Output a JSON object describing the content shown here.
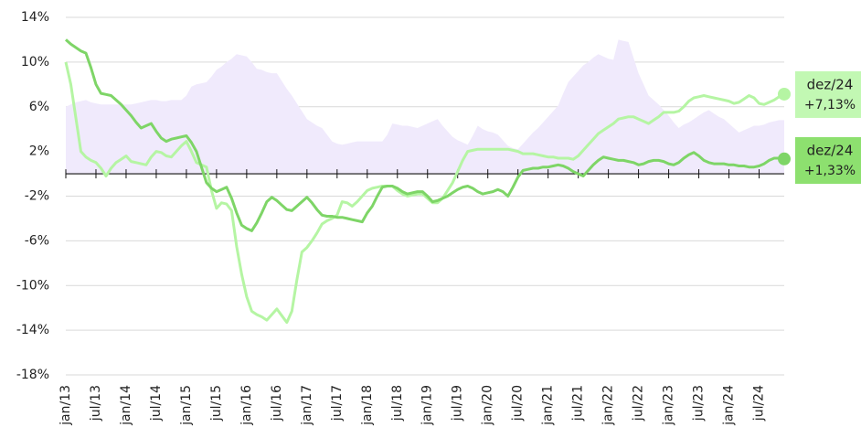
{
  "chart_data": {
    "type": "line",
    "categories": [
      "jan/13",
      null,
      null,
      null,
      null,
      null,
      "jul/13",
      null,
      null,
      null,
      null,
      null,
      "jan/14",
      null,
      null,
      null,
      null,
      null,
      "jul/14",
      null,
      null,
      null,
      null,
      null,
      "jan/15",
      null,
      null,
      null,
      null,
      null,
      "jul/15",
      null,
      null,
      null,
      null,
      null,
      "jan/16",
      null,
      null,
      null,
      null,
      null,
      "jul/16",
      null,
      null,
      null,
      null,
      null,
      "jan/17",
      null,
      null,
      null,
      null,
      null,
      "jul/17",
      null,
      null,
      null,
      null,
      null,
      "jan/18",
      null,
      null,
      null,
      null,
      null,
      "jul/18",
      null,
      null,
      null,
      null,
      null,
      "jan/19",
      null,
      null,
      null,
      null,
      null,
      "jul/19",
      null,
      null,
      null,
      null,
      null,
      "jan/20",
      null,
      null,
      null,
      null,
      null,
      "jul/20",
      null,
      null,
      null,
      null,
      null,
      "jan/21",
      null,
      null,
      null,
      null,
      null,
      "jul/21",
      null,
      null,
      null,
      null,
      null,
      "jan/22",
      null,
      null,
      null,
      null,
      null,
      "jul/22",
      null,
      null,
      null,
      null,
      null,
      "jan/23",
      null,
      null,
      null,
      null,
      null,
      "jul/23",
      null,
      null,
      null,
      null,
      null,
      "jan/24",
      null,
      null,
      null,
      null,
      null,
      "jul/24",
      null,
      null,
      null,
      null,
      null
    ],
    "last_period": "dez/24",
    "series": [
      {
        "kind": "area",
        "color": "#f0eafc",
        "values": [
          6.0,
          6.2,
          6.4,
          6.5,
          6.6,
          6.4,
          6.3,
          6.2,
          6.2,
          6.2,
          6.2,
          6.2,
          6.2,
          6.2,
          6.3,
          6.4,
          6.5,
          6.6,
          6.6,
          6.5,
          6.5,
          6.6,
          6.6,
          6.6,
          7.0,
          7.8,
          8.0,
          8.1,
          8.2,
          8.7,
          9.3,
          9.6,
          10.0,
          10.3,
          10.7,
          10.6,
          10.5,
          10.0,
          9.4,
          9.3,
          9.1,
          9.0,
          9.0,
          8.3,
          7.6,
          7.0,
          6.3,
          5.6,
          4.9,
          4.6,
          4.3,
          4.1,
          3.5,
          2.9,
          2.7,
          2.6,
          2.7,
          2.8,
          2.9,
          2.9,
          2.9,
          2.9,
          2.9,
          2.9,
          3.5,
          4.5,
          4.4,
          4.3,
          4.3,
          4.2,
          4.1,
          4.3,
          4.5,
          4.7,
          4.9,
          4.3,
          3.8,
          3.3,
          3.0,
          2.8,
          2.6,
          3.4,
          4.3,
          4.0,
          3.8,
          3.7,
          3.5,
          3.0,
          2.5,
          2.3,
          2.2,
          2.7,
          3.2,
          3.7,
          4.1,
          4.6,
          5.1,
          5.6,
          6.1,
          7.2,
          8.2,
          8.7,
          9.2,
          9.7,
          10.0,
          10.4,
          10.7,
          10.5,
          10.3,
          10.2,
          12.0,
          11.9,
          11.8,
          10.4,
          9.0,
          8.0,
          7.0,
          6.6,
          6.2,
          5.7,
          5.2,
          4.6,
          4.1,
          4.4,
          4.6,
          4.9,
          5.2,
          5.5,
          5.7,
          5.4,
          5.1,
          4.9,
          4.5,
          4.1,
          3.7,
          3.9,
          4.1,
          4.3,
          4.3,
          4.4,
          4.6,
          4.7,
          4.8,
          4.8
        ]
      },
      {
        "kind": "line",
        "color": "#b5f5a3",
        "label_color": "#c2f8b3",
        "values": [
          10.0,
          8.0,
          5.0,
          2.0,
          1.5,
          1.2,
          1.0,
          0.5,
          -0.2,
          0.5,
          1.0,
          1.3,
          1.6,
          1.1,
          1.0,
          0.9,
          0.8,
          1.5,
          2.0,
          1.9,
          1.6,
          1.5,
          2.0,
          2.5,
          2.9,
          2.0,
          1.0,
          0.8,
          0.6,
          -1.5,
          -3.1,
          -2.6,
          -2.7,
          -3.3,
          -6.5,
          -9.0,
          -11.0,
          -12.3,
          -12.6,
          -12.8,
          -13.1,
          -12.6,
          -12.1,
          -12.7,
          -13.3,
          -12.3,
          -9.5,
          -7.0,
          -6.6,
          -6.0,
          -5.3,
          -4.5,
          -4.2,
          -4.0,
          -3.7,
          -2.5,
          -2.6,
          -2.9,
          -2.5,
          -2.0,
          -1.5,
          -1.3,
          -1.2,
          -1.1,
          -1.1,
          -1.1,
          -1.5,
          -1.8,
          -2.0,
          -1.9,
          -1.8,
          -1.8,
          -2.2,
          -2.6,
          -2.6,
          -2.2,
          -1.5,
          -0.8,
          0.2,
          1.2,
          2.0,
          2.1,
          2.2,
          2.2,
          2.2,
          2.2,
          2.2,
          2.2,
          2.2,
          2.1,
          2.0,
          1.8,
          1.8,
          1.8,
          1.7,
          1.6,
          1.5,
          1.5,
          1.4,
          1.4,
          1.4,
          1.3,
          1.6,
          2.1,
          2.6,
          3.1,
          3.6,
          3.9,
          4.2,
          4.5,
          4.9,
          5.0,
          5.1,
          5.1,
          4.9,
          4.7,
          4.5,
          4.8,
          5.1,
          5.5,
          5.5,
          5.5,
          5.6,
          6.0,
          6.5,
          6.8,
          6.9,
          7.0,
          6.9,
          6.8,
          6.7,
          6.6,
          6.5,
          6.3,
          6.4,
          6.7,
          7.0,
          6.8,
          6.3,
          6.2,
          6.4,
          6.6,
          6.9,
          7.13
        ],
        "value_labels": [
          null,
          null,
          null,
          null,
          null,
          null,
          null,
          null,
          null,
          null,
          null,
          null,
          null,
          null,
          null,
          null,
          null,
          null,
          null,
          null,
          null,
          null,
          null,
          null,
          null,
          null,
          null,
          null,
          null,
          null,
          null,
          null,
          null,
          null,
          null,
          null,
          null,
          null,
          null,
          null,
          null,
          null,
          null,
          null,
          null,
          null,
          null,
          null,
          null,
          null,
          null,
          null,
          null,
          null,
          null,
          null,
          null,
          null,
          null,
          null,
          null,
          null,
          null,
          null,
          null,
          null,
          null,
          null,
          null,
          null,
          null,
          null,
          null,
          null,
          null,
          null,
          null,
          null,
          null,
          null,
          null,
          null,
          null,
          null,
          null,
          null,
          null,
          null,
          null,
          null,
          null,
          null,
          null,
          null,
          null,
          null,
          null,
          null,
          null,
          null,
          null,
          null,
          null,
          null,
          null,
          null,
          null,
          null,
          null,
          null,
          null,
          null,
          null,
          null,
          null,
          null,
          null,
          null,
          null,
          null,
          null,
          null,
          null,
          null,
          null,
          null,
          null,
          null,
          null,
          null,
          null,
          null,
          null,
          null,
          null,
          null,
          null,
          null,
          null,
          null,
          null,
          null,
          null,
          "+7,13%"
        ]
      },
      {
        "kind": "line",
        "color": "#7ed567",
        "label_color": "#8de06f",
        "values": [
          12.0,
          11.6,
          11.3,
          11.0,
          10.8,
          9.5,
          8.0,
          7.2,
          7.1,
          7.0,
          6.6,
          6.2,
          5.7,
          5.2,
          4.6,
          4.1,
          4.3,
          4.5,
          3.8,
          3.2,
          2.9,
          3.1,
          3.2,
          3.3,
          3.4,
          2.8,
          2.0,
          0.6,
          -0.8,
          -1.3,
          -1.6,
          -1.4,
          -1.2,
          -2.2,
          -3.5,
          -4.6,
          -4.9,
          -5.1,
          -4.4,
          -3.5,
          -2.5,
          -2.1,
          -2.4,
          -2.8,
          -3.2,
          -3.3,
          -2.9,
          -2.5,
          -2.1,
          -2.6,
          -3.2,
          -3.7,
          -3.8,
          -3.8,
          -3.9,
          -3.9,
          -4.0,
          -4.1,
          -4.2,
          -4.3,
          -3.5,
          -2.9,
          -2.0,
          -1.2,
          -1.1,
          -1.1,
          -1.3,
          -1.6,
          -1.8,
          -1.7,
          -1.6,
          -1.6,
          -2.0,
          -2.5,
          -2.4,
          -2.2,
          -2.0,
          -1.7,
          -1.4,
          -1.2,
          -1.1,
          -1.3,
          -1.6,
          -1.8,
          -1.7,
          -1.6,
          -1.4,
          -1.6,
          -2.0,
          -1.2,
          -0.3,
          0.3,
          0.4,
          0.5,
          0.5,
          0.6,
          0.6,
          0.7,
          0.8,
          0.7,
          0.5,
          0.2,
          0.0,
          -0.2,
          0.3,
          0.8,
          1.2,
          1.5,
          1.4,
          1.3,
          1.2,
          1.2,
          1.1,
          1.0,
          0.8,
          0.9,
          1.1,
          1.2,
          1.2,
          1.1,
          0.9,
          0.8,
          1.0,
          1.4,
          1.7,
          1.9,
          1.6,
          1.2,
          1.0,
          0.9,
          0.9,
          0.9,
          0.8,
          0.8,
          0.7,
          0.7,
          0.6,
          0.6,
          0.7,
          0.9,
          1.2,
          1.4,
          1.4,
          1.33
        ],
        "value_labels": [
          null,
          null,
          null,
          null,
          null,
          null,
          null,
          null,
          null,
          null,
          null,
          null,
          null,
          null,
          null,
          null,
          null,
          null,
          null,
          null,
          null,
          null,
          null,
          null,
          null,
          null,
          null,
          null,
          null,
          null,
          null,
          null,
          null,
          null,
          null,
          null,
          null,
          null,
          null,
          null,
          null,
          null,
          null,
          null,
          null,
          null,
          null,
          null,
          null,
          null,
          null,
          null,
          null,
          null,
          null,
          null,
          null,
          null,
          null,
          null,
          null,
          null,
          null,
          null,
          null,
          null,
          null,
          null,
          null,
          null,
          null,
          null,
          null,
          null,
          null,
          null,
          null,
          null,
          null,
          null,
          null,
          null,
          null,
          null,
          null,
          null,
          null,
          null,
          null,
          null,
          null,
          null,
          null,
          null,
          null,
          null,
          null,
          null,
          null,
          null,
          null,
          null,
          null,
          null,
          null,
          null,
          null,
          null,
          null,
          null,
          null,
          null,
          null,
          null,
          null,
          null,
          null,
          null,
          null,
          null,
          null,
          null,
          null,
          null,
          null,
          null,
          null,
          null,
          null,
          null,
          null,
          null,
          null,
          null,
          null,
          null,
          null,
          null,
          null,
          null,
          null,
          null,
          null,
          "+1,33%"
        ]
      }
    ],
    "ylim": [
      -18,
      14
    ],
    "yticks": [
      {
        "value": -18,
        "label": "-18%"
      },
      {
        "value": -14,
        "label": "-14%"
      },
      {
        "value": -10,
        "label": "-10%"
      },
      {
        "value": -6,
        "label": "-6%"
      },
      {
        "value": -2,
        "label": "-2%"
      },
      {
        "value": 2,
        "label": "2%"
      },
      {
        "value": 6,
        "label": "6%"
      },
      {
        "value": 10,
        "label": "10%"
      },
      {
        "value": 14,
        "label": "14%"
      }
    ],
    "grid": true
  }
}
